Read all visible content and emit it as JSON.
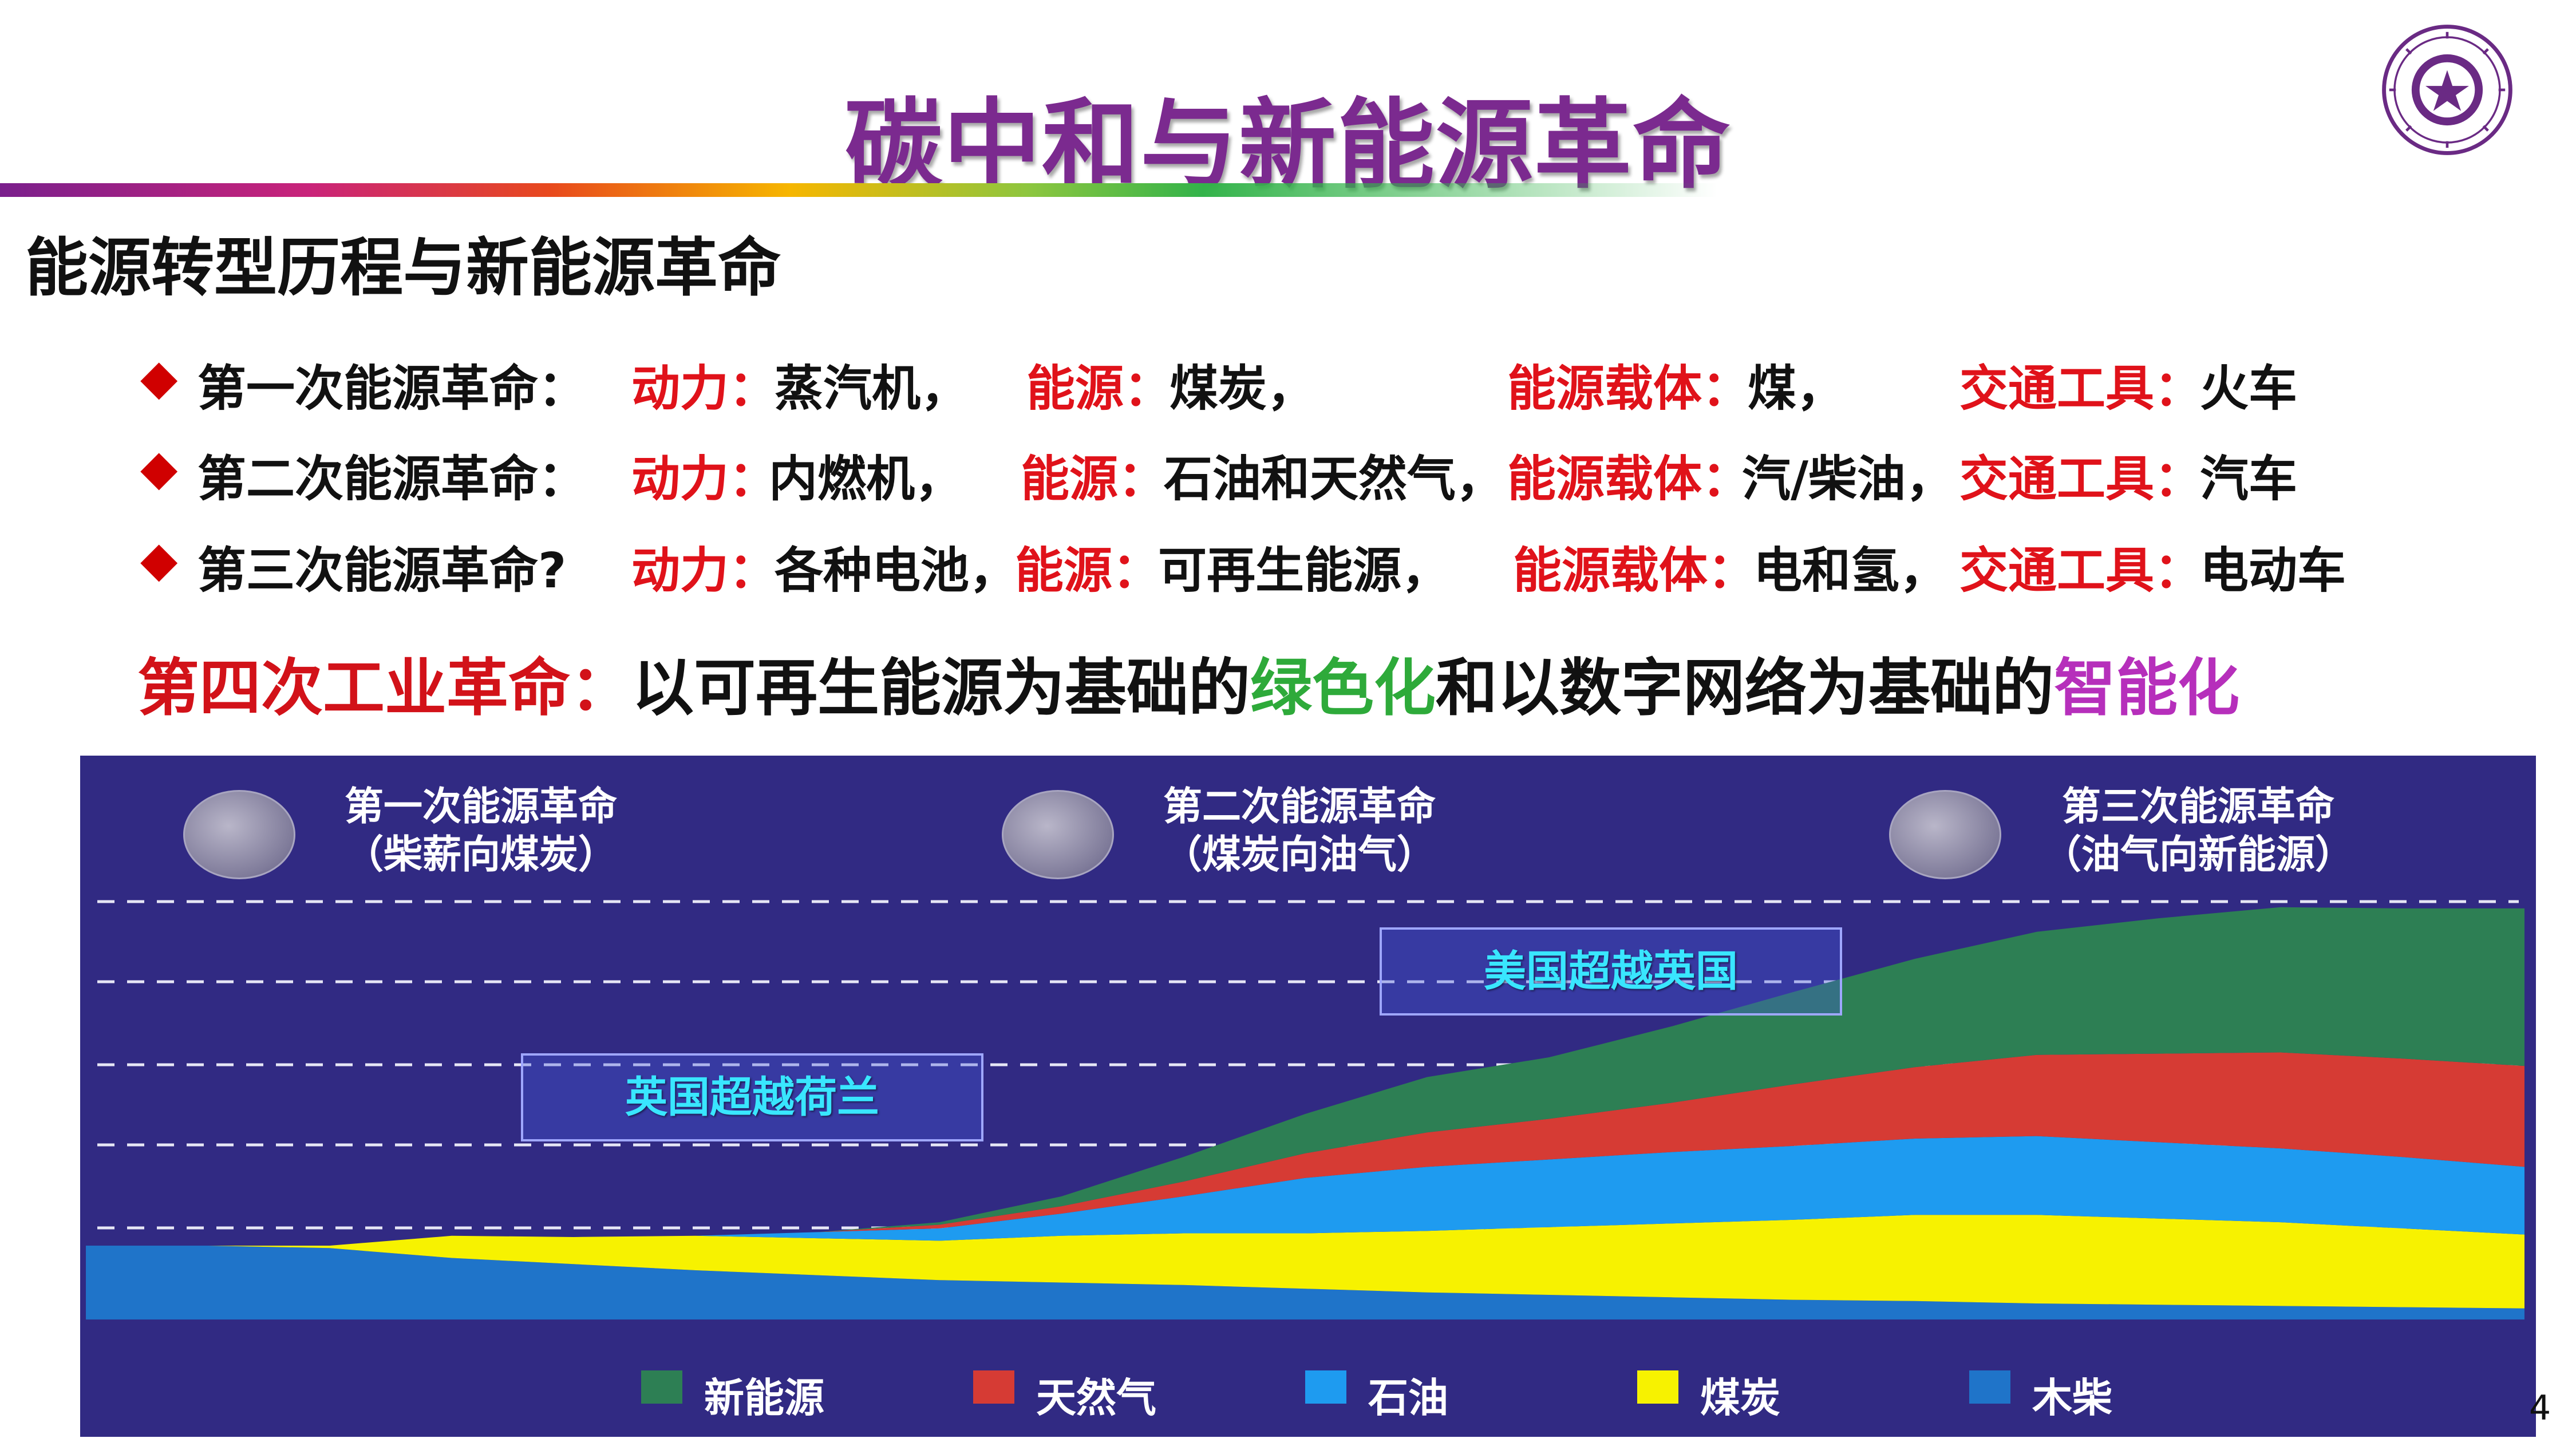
{
  "title": "碳中和与新能源革命",
  "subtitle": "能源转型历程与新能源革命",
  "colors": {
    "title": "#7b2a8f",
    "keyword_red": "#e0121a",
    "chart_bg": "#312a83",
    "green_text": "#2eaa3a",
    "purple_text": "#b62fbb"
  },
  "revolutions": [
    {
      "bullet": "◆",
      "name": "第一次能源革命：",
      "power_label": "动力：",
      "power": "蒸汽机，",
      "energy_label": "能源：",
      "energy": "煤炭，",
      "carrier_label": "能源载体：",
      "carrier": "煤，",
      "transport_label": "交通工具：",
      "transport": "火车"
    },
    {
      "bullet": "◆",
      "name": "第二次能源革命：",
      "power_label": "动力：",
      "power": "内燃机，",
      "energy_label": "能源：",
      "energy": "石油和天然气，",
      "carrier_label": "能源载体：",
      "carrier": "汽/柴油，",
      "transport_label": "交通工具：",
      "transport": "汽车"
    },
    {
      "bullet": "◆",
      "name": "第三次能源革命?",
      "power_label": "动力：",
      "power": "各种电池，",
      "energy_label": "能源：",
      "energy": "可再生能源，",
      "carrier_label": "能源载体：",
      "carrier": "电和氢，",
      "transport_label": "交通工具：",
      "transport": "电动车"
    }
  ],
  "industrial": {
    "label": "第四次工业革命：",
    "part1": "以可再生能源为基础的",
    "green": "绿色化",
    "part2": "和以数字网络为基础的",
    "smart": "智能化"
  },
  "chart_data": {
    "type": "area",
    "stacked": true,
    "era_labels": [
      {
        "title": "第一次能源革命",
        "subtitle": "（柴薪向煤炭）"
      },
      {
        "title": "第二次能源革命",
        "subtitle": "（煤炭向油气）"
      },
      {
        "title": "第三次能源革命",
        "subtitle": "（油气向新能源）"
      }
    ],
    "annotations": [
      "英国超越荷兰",
      "美国超越英国"
    ],
    "series": [
      {
        "name": "木柴",
        "color": "#1f74c9",
        "values": [
          0.6,
          0.6,
          0.58,
          0.5,
          0.45,
          0.4,
          0.36,
          0.32,
          0.3,
          0.28,
          0.25,
          0.22,
          0.2,
          0.18,
          0.16,
          0.15,
          0.13,
          0.12,
          0.11,
          0.1,
          0.09
        ]
      },
      {
        "name": "煤炭",
        "color": "#f7f200",
        "values": [
          0,
          0,
          0.02,
          0.18,
          0.22,
          0.28,
          0.3,
          0.32,
          0.38,
          0.42,
          0.45,
          0.5,
          0.55,
          0.6,
          0.65,
          0.7,
          0.72,
          0.7,
          0.68,
          0.64,
          0.6
        ]
      },
      {
        "name": "石油",
        "color": "#1e9bf0",
        "values": [
          0,
          0,
          0,
          0,
          0,
          0,
          0.05,
          0.1,
          0.18,
          0.3,
          0.45,
          0.52,
          0.55,
          0.58,
          0.6,
          0.62,
          0.64,
          0.62,
          0.6,
          0.58,
          0.55
        ]
      },
      {
        "name": "天然气",
        "color": "#d63b34",
        "values": [
          0,
          0,
          0,
          0,
          0,
          0,
          0,
          0.03,
          0.06,
          0.12,
          0.2,
          0.28,
          0.33,
          0.4,
          0.5,
          0.58,
          0.66,
          0.72,
          0.78,
          0.8,
          0.82
        ]
      },
      {
        "name": "新能源",
        "color": "#2d7f54",
        "values": [
          0,
          0,
          0,
          0,
          0,
          0,
          0,
          0.02,
          0.08,
          0.2,
          0.32,
          0.45,
          0.5,
          0.62,
          0.75,
          0.88,
          1.0,
          1.1,
          1.18,
          1.22,
          1.28
        ]
      }
    ],
    "legend_position": "bottom",
    "grid": "dashed horizontal"
  },
  "page_number": "4"
}
